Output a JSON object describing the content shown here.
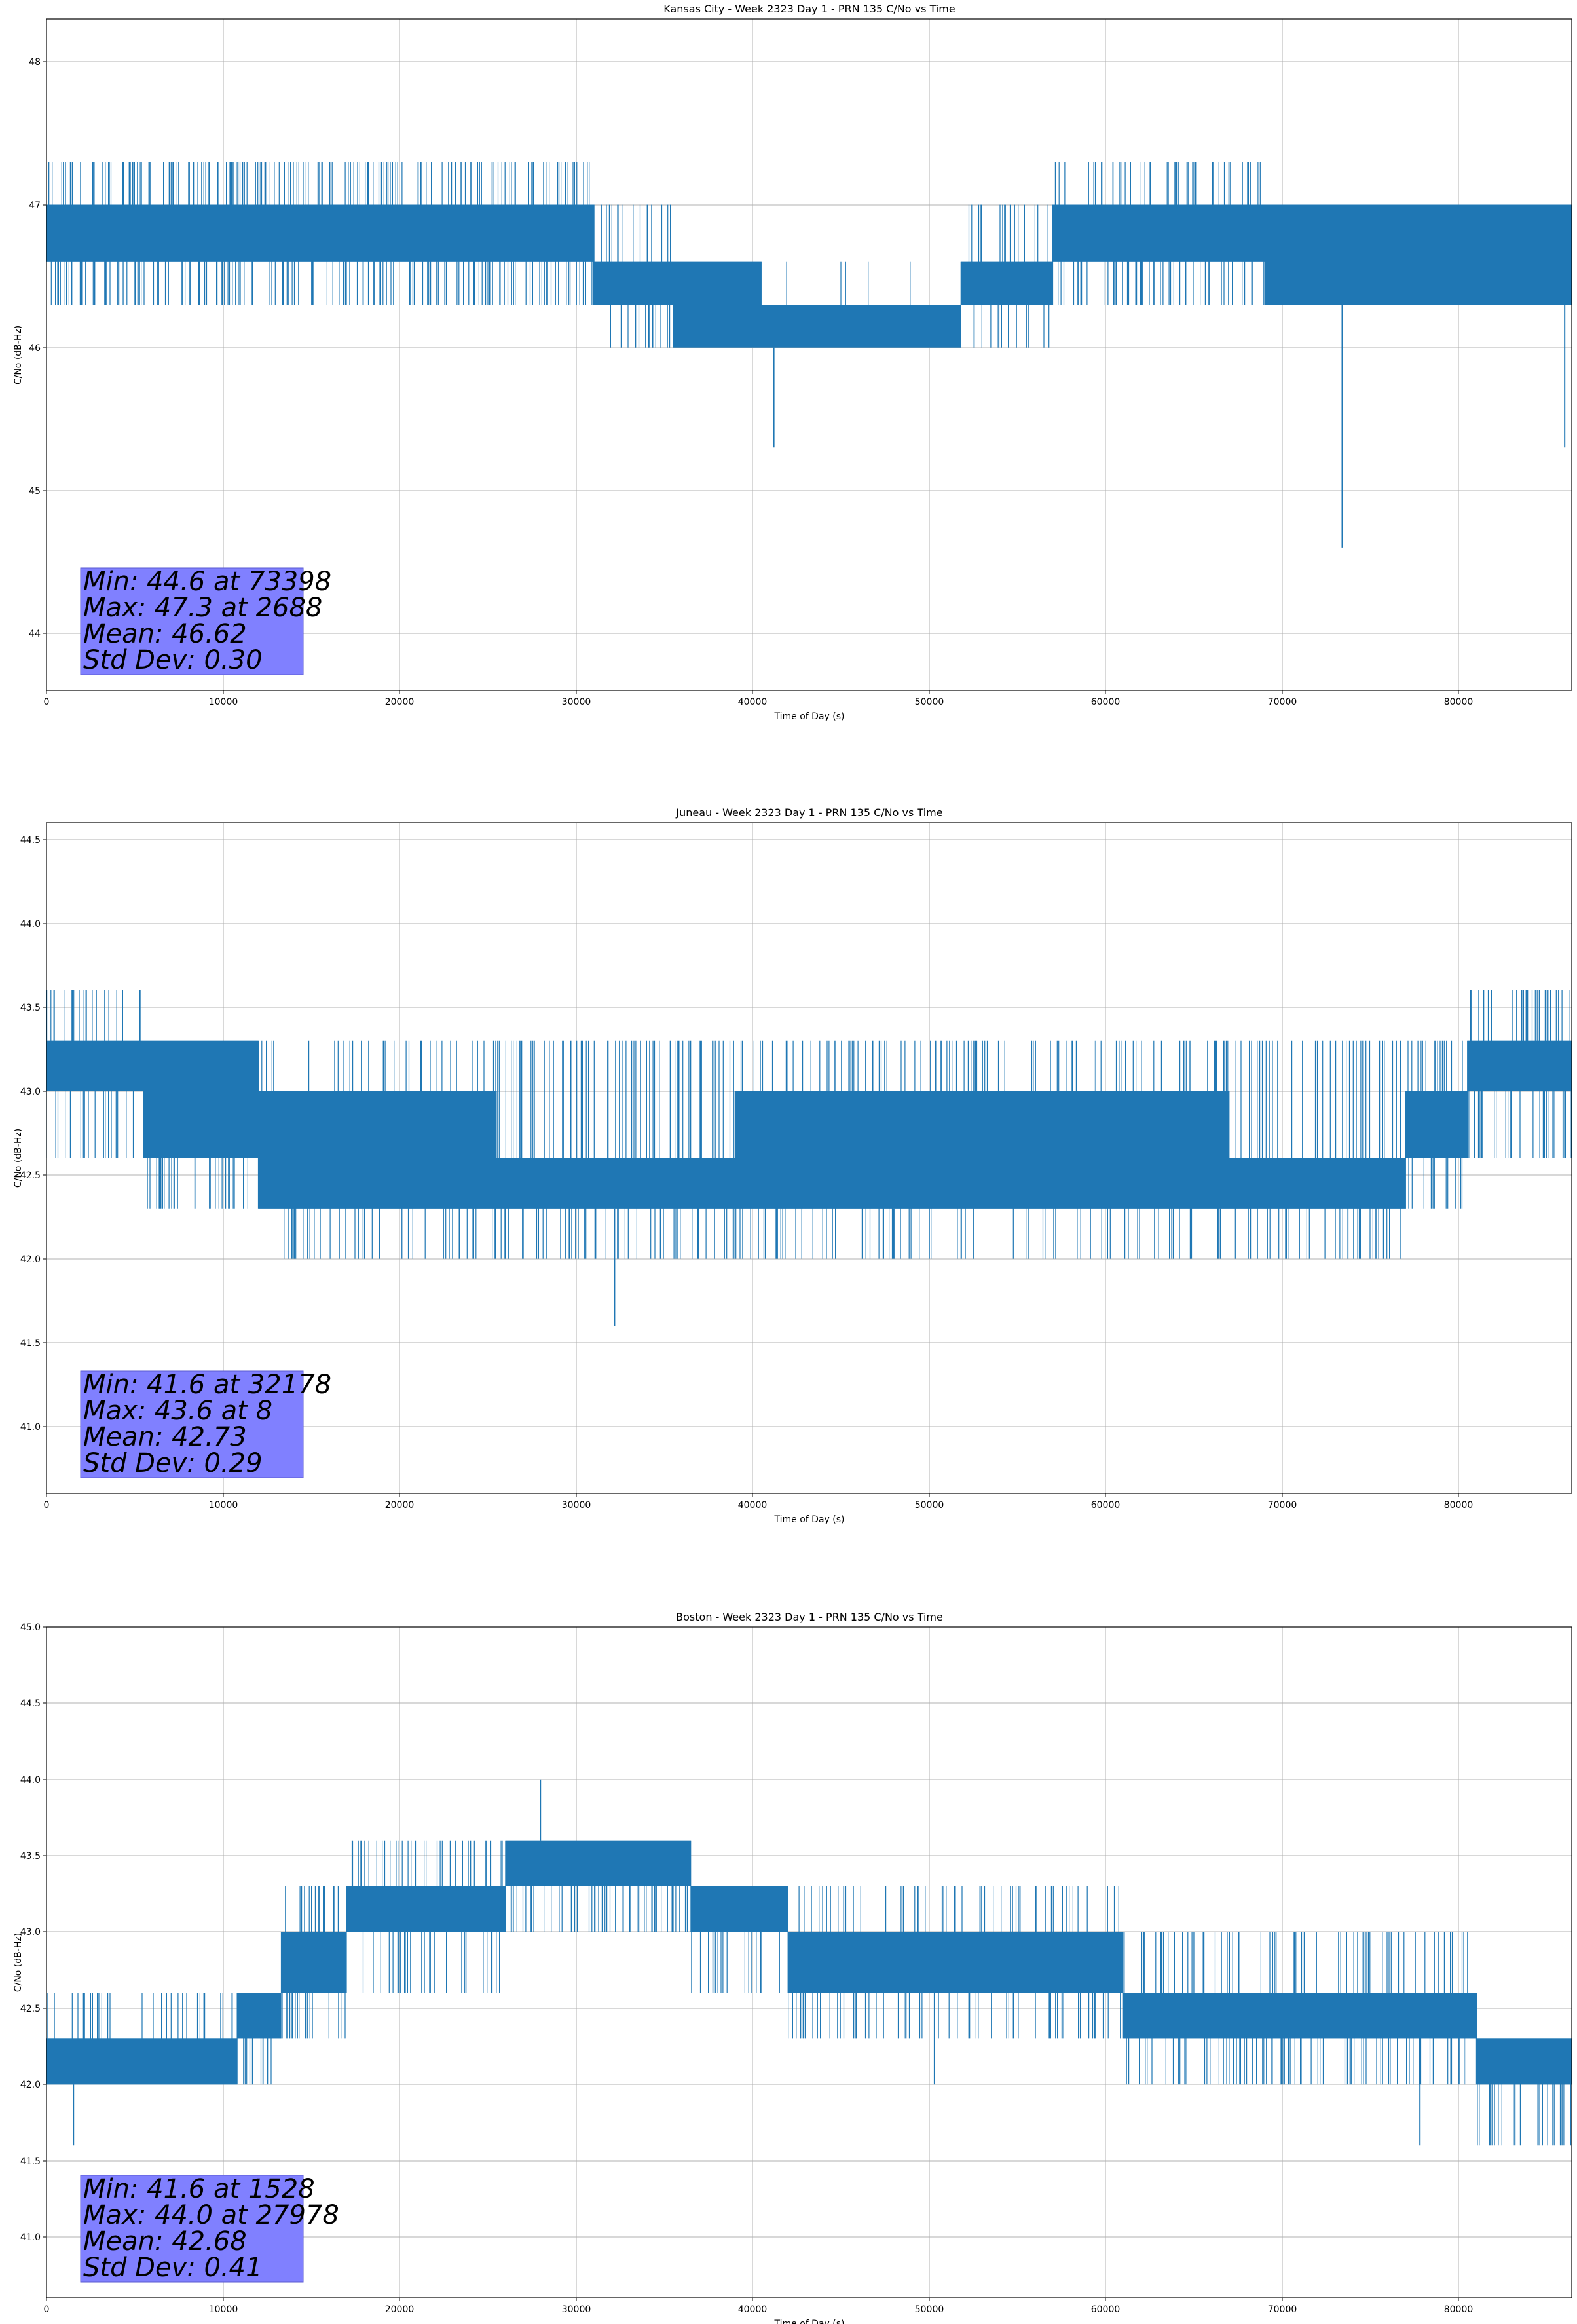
{
  "chart_data": [
    {
      "type": "line",
      "title": "Kansas City - Week 2323 Day 1 - PRN 135 C/No vs Time",
      "xlabel": "Time of Day (s)",
      "ylabel": "C/No (dB-Hz)",
      "xlim": [
        0,
        86400
      ],
      "ylim": [
        43.6,
        48.3
      ],
      "grid": true,
      "color": "#1f77b4",
      "xticks": [
        0,
        10000,
        20000,
        30000,
        40000,
        50000,
        60000,
        70000,
        80000
      ],
      "yticks": [
        44,
        45,
        46,
        47,
        48
      ],
      "ytick_decimals": 0,
      "stats": [
        "Min: 44.6 at 73398",
        "Max: 47.3 at 2688",
        "Mean: 46.62",
        "Std Dev: 0.30"
      ],
      "segments": [
        {
          "x0": 0,
          "x1": 31000,
          "lo": 46.6,
          "hi": 47.0,
          "out_hi": 47.3,
          "out_lo": 46.3,
          "spike_density": 0.18
        },
        {
          "x0": 31000,
          "x1": 35500,
          "lo": 46.3,
          "hi": 46.6,
          "out_hi": 47.0,
          "out_lo": 46.0,
          "spike_density": 0.12
        },
        {
          "x0": 35500,
          "x1": 40500,
          "lo": 46.0,
          "hi": 46.6,
          "out_hi": 46.6,
          "out_lo": 46.0,
          "spike_density": 0.1
        },
        {
          "x0": 40500,
          "x1": 51800,
          "lo": 46.0,
          "hi": 46.3,
          "out_hi": 46.6,
          "out_lo": 46.0,
          "spike_density": 0.03
        },
        {
          "x0": 51800,
          "x1": 57000,
          "lo": 46.3,
          "hi": 46.6,
          "out_hi": 47.0,
          "out_lo": 46.0,
          "spike_density": 0.12
        },
        {
          "x0": 57000,
          "x1": 69000,
          "lo": 46.6,
          "hi": 47.0,
          "out_hi": 47.3,
          "out_lo": 46.3,
          "spike_density": 0.15
        },
        {
          "x0": 69000,
          "x1": 86400,
          "lo": 46.3,
          "hi": 47.0,
          "out_hi": 47.0,
          "out_lo": 46.3,
          "spike_density": 0.15
        }
      ],
      "spikes": [
        [
          41200,
          45.3
        ],
        [
          73398,
          44.6
        ],
        [
          86000,
          45.3
        ],
        [
          2688,
          47.3
        ],
        [
          64000,
          47.3
        ]
      ]
    },
    {
      "type": "line",
      "title": "Juneau - Week 2323 Day 1 - PRN 135 C/No vs Time",
      "xlabel": "Time of Day (s)",
      "ylabel": "C/No (dB-Hz)",
      "xlim": [
        0,
        86400
      ],
      "ylim": [
        40.6,
        44.6
      ],
      "grid": true,
      "color": "#1f77b4",
      "xticks": [
        0,
        10000,
        20000,
        30000,
        40000,
        50000,
        60000,
        70000,
        80000
      ],
      "yticks": [
        41.0,
        41.5,
        42.0,
        42.5,
        43.0,
        43.5,
        44.0,
        44.5
      ],
      "ytick_decimals": 1,
      "stats": [
        "Min: 41.6 at 32178",
        "Max: 43.6 at 8",
        "Mean: 42.73",
        "Std Dev: 0.29"
      ],
      "segments": [
        {
          "x0": 0,
          "x1": 5500,
          "lo": 43.0,
          "hi": 43.3,
          "out_hi": 43.6,
          "out_lo": 42.6,
          "spike_density": 0.15
        },
        {
          "x0": 5500,
          "x1": 12000,
          "lo": 42.6,
          "hi": 43.3,
          "out_hi": 43.3,
          "out_lo": 42.3,
          "spike_density": 0.15
        },
        {
          "x0": 12000,
          "x1": 25500,
          "lo": 42.3,
          "hi": 43.0,
          "out_hi": 43.3,
          "out_lo": 42.0,
          "spike_density": 0.12
        },
        {
          "x0": 25500,
          "x1": 39000,
          "lo": 42.3,
          "hi": 42.6,
          "out_hi": 43.3,
          "out_lo": 42.0,
          "spike_density": 0.15
        },
        {
          "x0": 39000,
          "x1": 67000,
          "lo": 42.3,
          "hi": 43.0,
          "out_hi": 43.3,
          "out_lo": 42.0,
          "spike_density": 0.12
        },
        {
          "x0": 67000,
          "x1": 77000,
          "lo": 42.3,
          "hi": 42.6,
          "out_hi": 43.3,
          "out_lo": 42.0,
          "spike_density": 0.12
        },
        {
          "x0": 77000,
          "x1": 80500,
          "lo": 42.6,
          "hi": 43.0,
          "out_hi": 43.3,
          "out_lo": 42.3,
          "spike_density": 0.12
        },
        {
          "x0": 80500,
          "x1": 86400,
          "lo": 43.0,
          "hi": 43.3,
          "out_hi": 43.6,
          "out_lo": 42.6,
          "spike_density": 0.2
        }
      ],
      "spikes": [
        [
          32178,
          41.6
        ],
        [
          8,
          43.6
        ],
        [
          48000,
          42.0
        ],
        [
          66500,
          42.0
        ],
        [
          64800,
          42.0
        ]
      ]
    },
    {
      "type": "line",
      "title": "Boston - Week 2323 Day 1 - PRN 135 C/No vs Time",
      "xlabel": "Time of Day (s)",
      "ylabel": "C/No (dB-Hz)",
      "xlim": [
        0,
        86400
      ],
      "ylim": [
        40.6,
        45.0
      ],
      "grid": true,
      "color": "#1f77b4",
      "xticks": [
        0,
        10000,
        20000,
        30000,
        40000,
        50000,
        60000,
        70000,
        80000
      ],
      "yticks": [
        41.0,
        41.5,
        42.0,
        42.5,
        43.0,
        43.5,
        44.0,
        44.5,
        45.0
      ],
      "ytick_decimals": 1,
      "stats": [
        "Min: 41.6 at 1528",
        "Max: 44.0 at 27978",
        "Mean: 42.68",
        "Std Dev: 0.41"
      ],
      "segments": [
        {
          "x0": 0,
          "x1": 10800,
          "lo": 42.0,
          "hi": 42.3,
          "out_hi": 42.6,
          "out_lo": 42.0,
          "spike_density": 0.15
        },
        {
          "x0": 10800,
          "x1": 13300,
          "lo": 42.3,
          "hi": 42.6,
          "out_hi": 42.6,
          "out_lo": 42.0,
          "spike_density": 0.15
        },
        {
          "x0": 13300,
          "x1": 17000,
          "lo": 42.6,
          "hi": 43.0,
          "out_hi": 43.3,
          "out_lo": 42.3,
          "spike_density": 0.15
        },
        {
          "x0": 17000,
          "x1": 26000,
          "lo": 43.0,
          "hi": 43.3,
          "out_hi": 43.6,
          "out_lo": 42.6,
          "spike_density": 0.12
        },
        {
          "x0": 26000,
          "x1": 36500,
          "lo": 43.3,
          "hi": 43.6,
          "out_hi": 43.6,
          "out_lo": 43.0,
          "spike_density": 0.15
        },
        {
          "x0": 36500,
          "x1": 42000,
          "lo": 43.0,
          "hi": 43.3,
          "out_hi": 43.3,
          "out_lo": 42.6,
          "spike_density": 0.12
        },
        {
          "x0": 42000,
          "x1": 61000,
          "lo": 42.6,
          "hi": 43.0,
          "out_hi": 43.3,
          "out_lo": 42.3,
          "spike_density": 0.12
        },
        {
          "x0": 61000,
          "x1": 81000,
          "lo": 42.3,
          "hi": 42.6,
          "out_hi": 43.0,
          "out_lo": 42.0,
          "spike_density": 0.12
        },
        {
          "x0": 81000,
          "x1": 86400,
          "lo": 42.0,
          "hi": 42.3,
          "out_hi": 42.3,
          "out_lo": 41.6,
          "spike_density": 0.15
        }
      ],
      "spikes": [
        [
          1528,
          41.6
        ],
        [
          27978,
          44.0
        ],
        [
          50300,
          42.0
        ],
        [
          77800,
          41.6
        ]
      ]
    }
  ]
}
